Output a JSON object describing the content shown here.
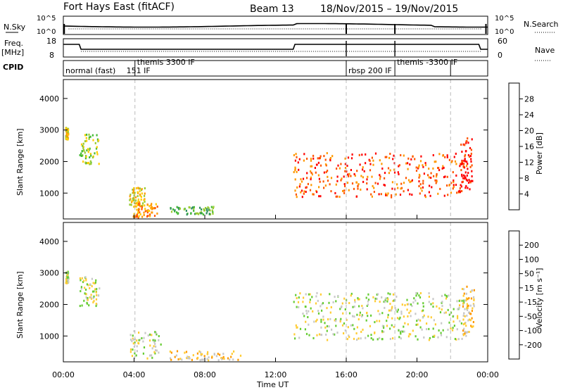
{
  "header": {
    "title": "Fort Hays East (fitACF)",
    "beam": "Beam 13",
    "dates": "18/Nov/2015 – 19/Nov/2015"
  },
  "summary": {
    "nsky_label": "N.Sky",
    "nsky_ticks": [
      "10^5",
      "10^0"
    ],
    "nsearch_label": "N.Search",
    "nsearch_ticks": [
      "10^5",
      "10^0"
    ],
    "freq_label": "Freq.",
    "freq_unit": "[MHz]",
    "freq_ticks": [
      "18",
      "8"
    ],
    "nave_label": "Nave",
    "nave_ticks": [
      "60",
      "0"
    ],
    "cpid_label": "CPID",
    "cpid_segments": [
      {
        "start_hr": 0.0,
        "label": "normal (fast)"
      },
      {
        "start_hr": 3.45,
        "label": "151 IF"
      },
      {
        "start_hr": 4.05,
        "label": "themis 3300 IF"
      },
      {
        "start_hr": 16.0,
        "label": "rbsp 200 IF"
      },
      {
        "start_hr": 18.75,
        "label": "themis -3300 IF"
      }
    ],
    "cpid_markers_hr": [
      0.0,
      4.05,
      16.0,
      18.75,
      21.9
    ]
  },
  "colors": {
    "power": [
      "#0000ff",
      "#1f4fa0",
      "#2f8f5f",
      "#44bb33",
      "#99cc33",
      "#ffcc00",
      "#ff9900",
      "#ff5500",
      "#ff0000"
    ],
    "velocity": [
      "#2222cc",
      "#3355aa",
      "#227744",
      "#66cc33",
      "#c8c8c8",
      "#ffcc33",
      "#ff9900",
      "#ff6600",
      "#ff0000"
    ]
  },
  "chart_data": [
    {
      "type": "heatmap",
      "name": "power",
      "ylabel": "Slant Range [km]",
      "yticks": [
        1000,
        2000,
        3000,
        4000
      ],
      "ylim": [
        180,
        4600
      ],
      "xlim": [
        0,
        24
      ],
      "colorbar_label": "Power [dB]",
      "colorbar_ticks": [
        "4",
        "8",
        "12",
        "16",
        "20",
        "24",
        "28"
      ],
      "features": [
        {
          "t0": 0.1,
          "t1": 0.25,
          "r0": 2700,
          "r1": 3100,
          "level": 5
        },
        {
          "t0": 0.9,
          "t1": 2.0,
          "r0": 1950,
          "r1": 2900,
          "level": 4
        },
        {
          "t0": 3.7,
          "t1": 4.6,
          "r0": 600,
          "r1": 1200,
          "level": 5
        },
        {
          "t0": 3.9,
          "t1": 5.3,
          "r0": 250,
          "r1": 700,
          "level": 6
        },
        {
          "t0": 6.0,
          "t1": 8.5,
          "r0": 350,
          "r1": 600,
          "level": 3
        },
        {
          "t0": 13.0,
          "t1": 22.8,
          "r0": 900,
          "r1": 2300,
          "level": 7
        },
        {
          "t0": 22.4,
          "t1": 23.1,
          "r0": 1100,
          "r1": 2800,
          "level": 8
        }
      ]
    },
    {
      "type": "heatmap",
      "name": "velocity",
      "ylabel": "Slant Range [km]",
      "yticks": [
        1000,
        2000,
        3000,
        4000
      ],
      "ylim": [
        180,
        4600
      ],
      "xlim": [
        0,
        24
      ],
      "xticks": [
        "00:00",
        "04:00",
        "08:00",
        "12:00",
        "16:00",
        "20:00",
        "00:00"
      ],
      "xlabel": "Time UT",
      "colorbar_label": "Velocity [m s⁻¹]",
      "colorbar_ticks": [
        "200",
        "100",
        "50",
        "15",
        "-15",
        "-50",
        "-100",
        "-200"
      ],
      "features": [
        {
          "t0": 0.1,
          "t1": 0.25,
          "r0": 2700,
          "r1": 3100,
          "level": 4
        },
        {
          "t0": 0.9,
          "t1": 2.0,
          "r0": 1950,
          "r1": 2900,
          "level": 4
        },
        {
          "t0": 3.7,
          "t1": 5.5,
          "r0": 300,
          "r1": 1200,
          "level": 4
        },
        {
          "t0": 6.0,
          "t1": 10.0,
          "r0": 250,
          "r1": 550,
          "level": 5
        },
        {
          "t0": 13.0,
          "t1": 22.8,
          "r0": 900,
          "r1": 2400,
          "level": 4
        },
        {
          "t0": 22.5,
          "t1": 23.2,
          "r0": 1000,
          "r1": 2600,
          "level": 5
        }
      ]
    }
  ]
}
